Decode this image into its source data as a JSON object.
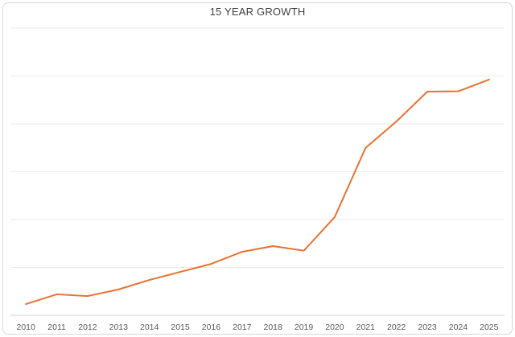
{
  "window": {
    "background": "#FFFFFF",
    "border_color": "#D8D8D8"
  },
  "chart_data": {
    "type": "line",
    "title": "15 YEAR GROWTH",
    "categories": [
      "2010",
      "2011",
      "2012",
      "2013",
      "2014",
      "2015",
      "2016",
      "2017",
      "2018",
      "2019",
      "2020",
      "2021",
      "2022",
      "2023",
      "2024",
      "2025"
    ],
    "values": [
      3.9,
      7.3,
      6.7,
      9.0,
      12.3,
      15.1,
      17.9,
      22.1,
      24.1,
      22.5,
      34.2,
      58.3,
      67.5,
      77.9,
      78.0,
      82.1
    ],
    "xlabel": "",
    "ylabel": "",
    "ylim": [
      0,
      100
    ],
    "y_axis_labels_visible": false,
    "gridlines": {
      "horizontal": true,
      "vertical": false,
      "values": [
        16.67,
        33.33,
        50,
        66.67,
        83.33,
        100
      ]
    },
    "legend": "none",
    "line_color": "#E97132",
    "line_width": 2,
    "gridline_color": "#EAEAEA",
    "axis_line_color": "#D2D2D2",
    "tick_label_color": "#595959",
    "title_color": "#404040"
  }
}
